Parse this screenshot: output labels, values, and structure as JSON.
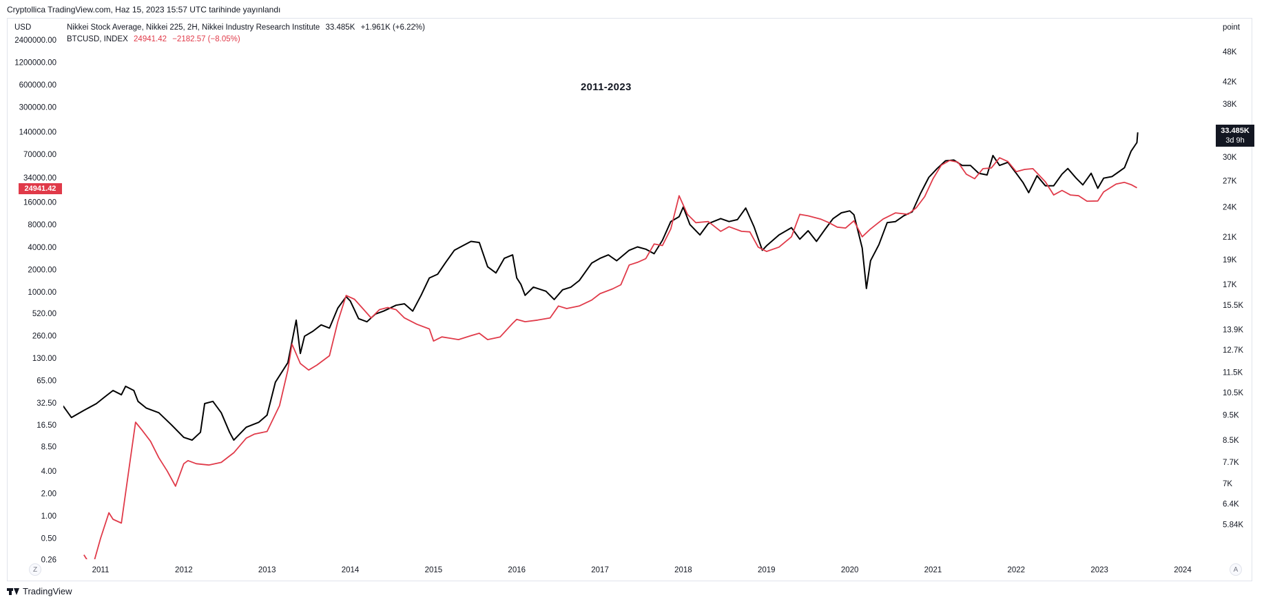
{
  "header": {
    "published": "Cryptollica TradingView.com, Haz 15, 2023 15:57 UTC tarihinde yayınlandı"
  },
  "legend": {
    "nikkei": {
      "name": "Nikkei Stock Average, Nikkei 225, 2H, Nikkei Industry Research Institute",
      "value": "33.485K",
      "change": "+1.961K (+6.22%)"
    },
    "btc": {
      "name": "BTCUSD, INDEX",
      "value": "24941.42",
      "change": "−2182.57 (−8.05%)"
    }
  },
  "axes": {
    "left_unit": "USD",
    "right_unit": "point"
  },
  "badges": {
    "btc": "24941.42",
    "nikkei_value": "33.485K",
    "nikkei_countdown": "3d 9h"
  },
  "buttons": {
    "z": "Z",
    "a": "A"
  },
  "footer": {
    "brand": "TradingView"
  },
  "colors": {
    "nikkei": "#000000",
    "btc": "#e03a49",
    "frame": "#e0e3eb"
  },
  "chart_data": {
    "type": "line",
    "title": "2011-2023",
    "x_ticks": [
      "2011",
      "2012",
      "2013",
      "2014",
      "2015",
      "2016",
      "2017",
      "2018",
      "2019",
      "2020",
      "2021",
      "2022",
      "2023",
      "2024"
    ],
    "left_axis": {
      "unit": "USD",
      "scale": "log",
      "ticks": [
        "2400000.00",
        "1200000.00",
        "600000.00",
        "300000.00",
        "140000.00",
        "70000.00",
        "34000.00",
        "16000.00",
        "8000.00",
        "4000.00",
        "2000.00",
        "1000.00",
        "520.00",
        "260.00",
        "130.00",
        "65.00",
        "32.50",
        "16.50",
        "8.50",
        "4.00",
        "2.00",
        "1.00",
        "0.50",
        "0.26"
      ]
    },
    "right_axis": {
      "unit": "point",
      "scale": "log",
      "ticks": [
        "48K",
        "42K",
        "38K",
        "30K",
        "27K",
        "24K",
        "21K",
        "19K",
        "17K",
        "15.5K",
        "13.9K",
        "12.7K",
        "11.5K",
        "10.5K",
        "9.5K",
        "8.5K",
        "7.7K",
        "7K",
        "6.4K",
        "5.84K"
      ]
    },
    "series": [
      {
        "name": "Nikkei Stock Average, Nikkei 225",
        "axis": "right",
        "color": "#000000",
        "points": [
          [
            2010.55,
            9900
          ],
          [
            2010.65,
            9400
          ],
          [
            2010.8,
            9700
          ],
          [
            2010.95,
            10000
          ],
          [
            2011.05,
            10300
          ],
          [
            2011.15,
            10600
          ],
          [
            2011.25,
            10400
          ],
          [
            2011.3,
            10800
          ],
          [
            2011.4,
            10600
          ],
          [
            2011.45,
            10100
          ],
          [
            2011.55,
            9800
          ],
          [
            2011.7,
            9600
          ],
          [
            2011.85,
            9100
          ],
          [
            2012.0,
            8600
          ],
          [
            2012.1,
            8500
          ],
          [
            2012.2,
            8800
          ],
          [
            2012.25,
            10000
          ],
          [
            2012.35,
            10100
          ],
          [
            2012.45,
            9600
          ],
          [
            2012.55,
            8800
          ],
          [
            2012.6,
            8500
          ],
          [
            2012.75,
            9000
          ],
          [
            2012.9,
            9200
          ],
          [
            2013.0,
            9500
          ],
          [
            2013.1,
            11000
          ],
          [
            2013.25,
            12000
          ],
          [
            2013.35,
            14500
          ],
          [
            2013.4,
            12500
          ],
          [
            2013.45,
            13500
          ],
          [
            2013.55,
            13800
          ],
          [
            2013.65,
            14200
          ],
          [
            2013.75,
            14000
          ],
          [
            2013.85,
            15300
          ],
          [
            2013.95,
            16100
          ],
          [
            2014.0,
            15800
          ],
          [
            2014.1,
            14600
          ],
          [
            2014.2,
            14400
          ],
          [
            2014.3,
            14900
          ],
          [
            2014.4,
            15100
          ],
          [
            2014.55,
            15500
          ],
          [
            2014.65,
            15600
          ],
          [
            2014.75,
            15100
          ],
          [
            2014.85,
            16200
          ],
          [
            2014.95,
            17500
          ],
          [
            2015.05,
            17800
          ],
          [
            2015.15,
            18800
          ],
          [
            2015.25,
            19800
          ],
          [
            2015.35,
            20200
          ],
          [
            2015.45,
            20600
          ],
          [
            2015.55,
            20500
          ],
          [
            2015.65,
            18400
          ],
          [
            2015.75,
            17900
          ],
          [
            2015.85,
            19100
          ],
          [
            2015.95,
            19400
          ],
          [
            2016.0,
            17500
          ],
          [
            2016.05,
            17000
          ],
          [
            2016.1,
            16200
          ],
          [
            2016.2,
            16800
          ],
          [
            2016.35,
            16500
          ],
          [
            2016.45,
            15900
          ],
          [
            2016.55,
            16600
          ],
          [
            2016.65,
            16800
          ],
          [
            2016.75,
            17300
          ],
          [
            2016.9,
            18700
          ],
          [
            2017.0,
            19100
          ],
          [
            2017.1,
            19400
          ],
          [
            2017.2,
            18900
          ],
          [
            2017.35,
            19800
          ],
          [
            2017.45,
            20100
          ],
          [
            2017.55,
            19900
          ],
          [
            2017.65,
            19500
          ],
          [
            2017.75,
            20700
          ],
          [
            2017.85,
            22500
          ],
          [
            2017.95,
            23000
          ],
          [
            2018.0,
            24000
          ],
          [
            2018.08,
            22200
          ],
          [
            2018.2,
            21200
          ],
          [
            2018.3,
            22300
          ],
          [
            2018.45,
            22800
          ],
          [
            2018.55,
            22500
          ],
          [
            2018.65,
            22700
          ],
          [
            2018.75,
            23900
          ],
          [
            2018.85,
            22000
          ],
          [
            2018.95,
            19800
          ],
          [
            2019.0,
            20200
          ],
          [
            2019.15,
            21200
          ],
          [
            2019.3,
            21900
          ],
          [
            2019.4,
            20800
          ],
          [
            2019.5,
            21600
          ],
          [
            2019.6,
            20600
          ],
          [
            2019.7,
            21700
          ],
          [
            2019.8,
            22800
          ],
          [
            2019.9,
            23400
          ],
          [
            2020.0,
            23600
          ],
          [
            2020.05,
            23200
          ],
          [
            2020.15,
            20000
          ],
          [
            2020.2,
            16700
          ],
          [
            2020.25,
            18900
          ],
          [
            2020.35,
            20300
          ],
          [
            2020.45,
            22400
          ],
          [
            2020.55,
            22500
          ],
          [
            2020.65,
            23100
          ],
          [
            2020.75,
            23500
          ],
          [
            2020.85,
            25500
          ],
          [
            2020.95,
            27400
          ],
          [
            2021.05,
            28500
          ],
          [
            2021.15,
            29500
          ],
          [
            2021.25,
            29600
          ],
          [
            2021.35,
            28900
          ],
          [
            2021.45,
            28900
          ],
          [
            2021.55,
            27900
          ],
          [
            2021.65,
            27700
          ],
          [
            2021.72,
            30200
          ],
          [
            2021.8,
            28900
          ],
          [
            2021.9,
            29300
          ],
          [
            2022.0,
            27900
          ],
          [
            2022.08,
            26800
          ],
          [
            2022.15,
            25600
          ],
          [
            2022.25,
            27600
          ],
          [
            2022.35,
            26400
          ],
          [
            2022.45,
            26400
          ],
          [
            2022.55,
            27800
          ],
          [
            2022.62,
            28500
          ],
          [
            2022.72,
            27300
          ],
          [
            2022.8,
            26500
          ],
          [
            2022.9,
            27900
          ],
          [
            2022.98,
            26100
          ],
          [
            2023.05,
            27300
          ],
          [
            2023.15,
            27500
          ],
          [
            2023.22,
            28000
          ],
          [
            2023.3,
            28600
          ],
          [
            2023.38,
            30800
          ],
          [
            2023.45,
            32000
          ],
          [
            2023.46,
            33485
          ]
        ]
      },
      {
        "name": "BTCUSD, INDEX",
        "axis": "left",
        "color": "#e03a49",
        "points": [
          [
            2010.8,
            0.3
          ],
          [
            2010.9,
            0.2
          ],
          [
            2011.0,
            0.5
          ],
          [
            2011.1,
            1.1
          ],
          [
            2011.15,
            0.9
          ],
          [
            2011.25,
            0.8
          ],
          [
            2011.35,
            5
          ],
          [
            2011.42,
            18
          ],
          [
            2011.5,
            14
          ],
          [
            2011.6,
            10
          ],
          [
            2011.7,
            6
          ],
          [
            2011.8,
            4
          ],
          [
            2011.9,
            2.5
          ],
          [
            2012.0,
            5
          ],
          [
            2012.05,
            5.5
          ],
          [
            2012.15,
            5
          ],
          [
            2012.3,
            4.8
          ],
          [
            2012.45,
            5.2
          ],
          [
            2012.6,
            7
          ],
          [
            2012.75,
            11
          ],
          [
            2012.85,
            12.5
          ],
          [
            2013.0,
            13.5
          ],
          [
            2013.15,
            30
          ],
          [
            2013.25,
            90
          ],
          [
            2013.3,
            200
          ],
          [
            2013.4,
            110
          ],
          [
            2013.5,
            90
          ],
          [
            2013.6,
            105
          ],
          [
            2013.75,
            140
          ],
          [
            2013.85,
            400
          ],
          [
            2013.95,
            900
          ],
          [
            2014.05,
            800
          ],
          [
            2014.15,
            600
          ],
          [
            2014.25,
            450
          ],
          [
            2014.35,
            580
          ],
          [
            2014.45,
            620
          ],
          [
            2014.55,
            580
          ],
          [
            2014.65,
            450
          ],
          [
            2014.8,
            370
          ],
          [
            2014.95,
            320
          ],
          [
            2015.0,
            220
          ],
          [
            2015.1,
            250
          ],
          [
            2015.2,
            240
          ],
          [
            2015.3,
            230
          ],
          [
            2015.45,
            260
          ],
          [
            2015.55,
            280
          ],
          [
            2015.65,
            230
          ],
          [
            2015.8,
            250
          ],
          [
            2015.95,
            380
          ],
          [
            2016.0,
            430
          ],
          [
            2016.1,
            400
          ],
          [
            2016.25,
            420
          ],
          [
            2016.4,
            450
          ],
          [
            2016.5,
            650
          ],
          [
            2016.6,
            600
          ],
          [
            2016.75,
            650
          ],
          [
            2016.9,
            780
          ],
          [
            2017.0,
            950
          ],
          [
            2017.15,
            1100
          ],
          [
            2017.25,
            1250
          ],
          [
            2017.35,
            2300
          ],
          [
            2017.45,
            2500
          ],
          [
            2017.55,
            2800
          ],
          [
            2017.65,
            4400
          ],
          [
            2017.75,
            4200
          ],
          [
            2017.85,
            7000
          ],
          [
            2017.95,
            19500
          ],
          [
            2018.05,
            11000
          ],
          [
            2018.15,
            8500
          ],
          [
            2018.3,
            8800
          ],
          [
            2018.45,
            6500
          ],
          [
            2018.55,
            7500
          ],
          [
            2018.7,
            6500
          ],
          [
            2018.8,
            6400
          ],
          [
            2018.9,
            4000
          ],
          [
            2019.0,
            3500
          ],
          [
            2019.15,
            4000
          ],
          [
            2019.3,
            5500
          ],
          [
            2019.4,
            11000
          ],
          [
            2019.5,
            10500
          ],
          [
            2019.65,
            9500
          ],
          [
            2019.75,
            8500
          ],
          [
            2019.85,
            7400
          ],
          [
            2019.95,
            7200
          ],
          [
            2020.05,
            9000
          ],
          [
            2020.15,
            5500
          ],
          [
            2020.25,
            7000
          ],
          [
            2020.4,
            9500
          ],
          [
            2020.55,
            11500
          ],
          [
            2020.7,
            11000
          ],
          [
            2020.8,
            13500
          ],
          [
            2020.9,
            19000
          ],
          [
            2021.0,
            33000
          ],
          [
            2021.1,
            50000
          ],
          [
            2021.2,
            58000
          ],
          [
            2021.3,
            55000
          ],
          [
            2021.4,
            38000
          ],
          [
            2021.5,
            33000
          ],
          [
            2021.6,
            45000
          ],
          [
            2021.7,
            46000
          ],
          [
            2021.8,
            63000
          ],
          [
            2021.9,
            56000
          ],
          [
            2022.0,
            41000
          ],
          [
            2022.1,
            44000
          ],
          [
            2022.2,
            45000
          ],
          [
            2022.35,
            30000
          ],
          [
            2022.45,
            20000
          ],
          [
            2022.55,
            23000
          ],
          [
            2022.65,
            20000
          ],
          [
            2022.75,
            19500
          ],
          [
            2022.85,
            16500
          ],
          [
            2022.98,
            16600
          ],
          [
            2023.05,
            22000
          ],
          [
            2023.2,
            28000
          ],
          [
            2023.3,
            29500
          ],
          [
            2023.38,
            27500
          ],
          [
            2023.45,
            24941
          ]
        ]
      }
    ]
  }
}
